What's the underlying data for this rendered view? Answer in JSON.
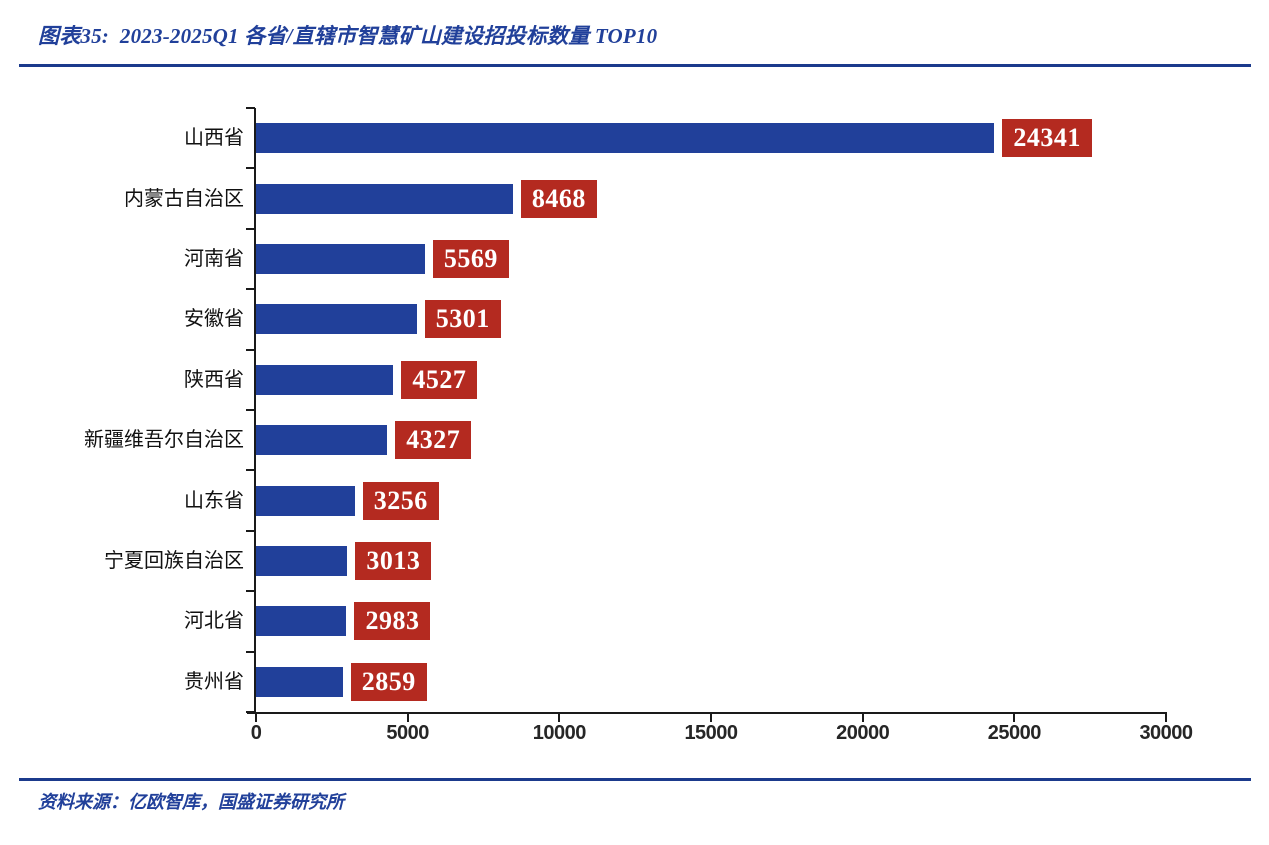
{
  "header": {
    "title": "图表35:  2023-2025Q1 各省/直辖市智慧矿山建设招投标数量 TOP10"
  },
  "source": {
    "text": "资料来源：亿欧智库，国盛证券研究所"
  },
  "colors": {
    "bar_blue": "#21409A",
    "badge_red": "#B42A20",
    "badge_text": "#FFFFFF",
    "title_blue": "#21409A",
    "rule_navy": "#1B3A8C",
    "axis_black": "#1A1A1A"
  },
  "chart_data": {
    "type": "bar",
    "orientation": "horizontal",
    "title": "2023-2025Q1 各省/直辖市智慧矿山建设招投标数量 TOP10",
    "categories": [
      "山西省",
      "内蒙古自治区",
      "河南省",
      "安徽省",
      "陕西省",
      "新疆维吾尔自治区",
      "山东省",
      "宁夏回族自治区",
      "河北省",
      "贵州省"
    ],
    "values": [
      24341,
      8468,
      5569,
      5301,
      4527,
      4327,
      3256,
      3013,
      2983,
      2859
    ],
    "x_ticks": [
      0,
      5000,
      10000,
      15000,
      20000,
      25000,
      30000
    ],
    "x_tick_labels": [
      "0",
      "5000",
      "10000",
      "15000",
      "20000",
      "25000",
      "30000"
    ],
    "xlim": [
      0,
      30000
    ],
    "xlabel": "",
    "ylabel": "",
    "grid": false,
    "legend": false,
    "data_labels": "in red boxes at bar ends"
  }
}
